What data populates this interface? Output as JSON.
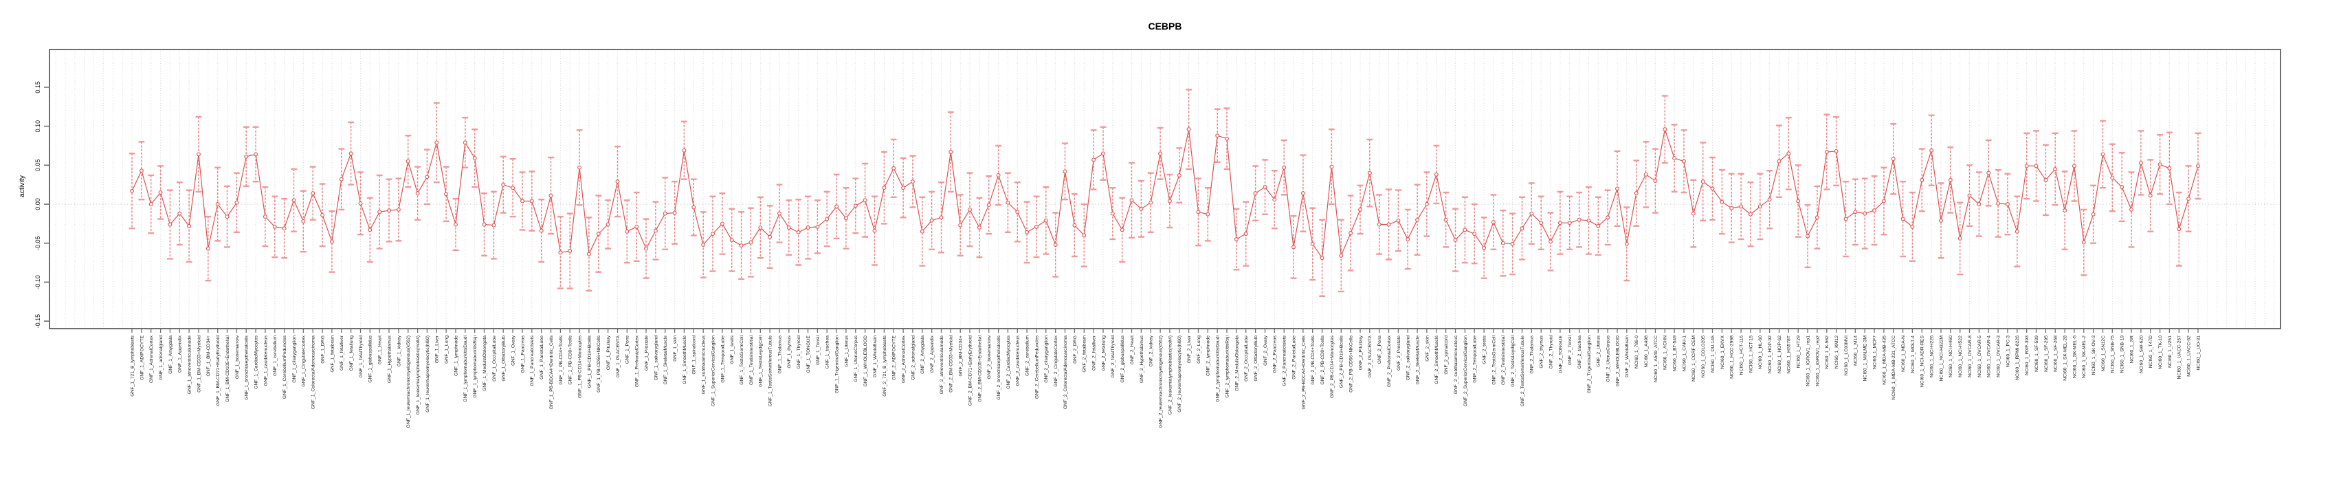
{
  "title": "CEBPB",
  "chart_data": {
    "type": "scatter",
    "subtype": "errorbar-series",
    "title": "CEBPB",
    "xlabel": "",
    "ylabel": "activity",
    "ylim": [
      -0.158,
      0.198
    ],
    "yticks": [
      0.15,
      0.1,
      0.05,
      0.0,
      -0.05,
      -0.1,
      -0.15
    ],
    "ytick_labels": [
      "0.15",
      "0.10",
      "0.05",
      "0.00",
      "-0.05",
      "-0.10",
      "-0.15"
    ],
    "grid": "vertical dotted gridline per category, dotted horizontal line at zero",
    "legend": "none",
    "marker": "open-circle",
    "colors": {
      "whisker": "#ef9a9a",
      "whisker_line": "#e96a6a",
      "series_line": "#de5252",
      "marker_stroke": "#de5252",
      "gridline": "#d4d4d4",
      "zero_line": "#c9c9c9",
      "axis_border": "#6e6e6e",
      "tick": "#6e6e6e",
      "label_text": "#1a1a1a"
    },
    "categories": [
      "GNF_1_721_B_lymphoblasts",
      "GNF_1_ADIPOCYTE",
      "GNF_1_AdrenalCortex",
      "GNF_1_adrenalgland",
      "GNF_1_Amygdala",
      "GNF_1_Appendix",
      "GNF_1_atrioventricularnode",
      "GNF_1_BM-CD33+Myeloid",
      "GNF_1_BM-CD34+",
      "GNF_1_BM-CD71+EarlyErythroid",
      "GNF_1_BM-CD105+Endothelial",
      "GNF_1_bonemarrow",
      "GNF_1_bronchialepithelialcells",
      "GNF_1_CardiacMyocytes",
      "GNF_1_caudatenucleus",
      "GNF_1_cerebellum",
      "GNF_1_CerebellumPeduncles",
      "GNF_1_ciliaryganglion",
      "GNF_1_CingulateCortex",
      "GNF_1_ColorectalAdenocarcinoma",
      "GNF_1_DRG",
      "GNF_1_fetalbrain",
      "GNF_1_fetalliver",
      "GNF_1_fetallung",
      "GNF_1_fetalThyroid",
      "GNF_1_globuspallidus",
      "GNF_1_Heart",
      "GNF_1_Hypothalamus",
      "GNF_1_kidney",
      "GNF_1_leukemiachronicmyelogenous(k562)",
      "GNF_1_leukemialymphoblastic(molt4)",
      "GNF_1_leukemiapromyelocytic(hl60)",
      "GNF_1_Liver",
      "GNF_1_Lung",
      "GNF_1_lymphnode",
      "GNF_1_lymphomaburkittsDaudi",
      "GNF_1_lymphomaburkittsRaji",
      "GNF_1_MedullaOblongata",
      "GNF_1_OccipitalLobe",
      "GNF_1_OlfactoryBulb",
      "GNF_1_Ovary",
      "GNF_1_Pancreas",
      "GNF_1_PancreaticIslets",
      "GNF_1_ParietalLobe",
      "GNF_1_PB-BDCA4+Dentritic_Cells",
      "GNF_1_PB-CD4+Tcells",
      "GNF_1_PB-CD8+Tcells",
      "GNF_1_PB-CD14+Monocytes",
      "GNF_1_PB-CD19+Bcells",
      "GNF_1_PB-CD56+NKCells",
      "GNF_1_Pituitary",
      "GNF_1_PLACENTA",
      "GNF_1_Pons",
      "GNF_1_PrefrontalCortex",
      "GNF_1_Prostate",
      "GNF_1_salivarygland",
      "GNF_1_SkeletalMuscle",
      "GNF_1_skin",
      "GNF_1_SmoothMuscle",
      "GNF_1_spinalcord",
      "GNF_1_subthalamicnucleus",
      "GNF_1_SuperiorCervicalGanglion",
      "GNF_1_TemporalLobe",
      "GNF_1_testis",
      "GNF_1_TestisGermCell",
      "GNF_1_TestisInterstitial",
      "GNF_1_TestisLeydigCell",
      "GNF_1_TestisSeminiferousTubule",
      "GNF_1_Thalamus",
      "GNF_1_thymus",
      "GNF_1_Thyroid",
      "GNF_1_TONGUE",
      "GNF_1_Tonsil",
      "GNF_1_trachea",
      "GNF_1_TrigeminalGanglion",
      "GNF_1_Uterus",
      "GNF_1_UterusCorpus",
      "GNF_1_WHOLEBLOOD",
      "GNF_1_WholeBrain",
      "GNF_2_721_B_lymphoblasts",
      "GNF_2_ADIPOCYTE",
      "GNF_2_AdrenalCortex",
      "GNF_2_adrenalgland",
      "GNF_2_Amygdala",
      "GNF_2_Appendix",
      "GNF_2_atrioventricularnode",
      "GNF_2_BM-CD33+Myeloid",
      "GNF_2_BM-CD34+",
      "GNF_2_BM-CD71+EarlyErythroid",
      "GNF_2_BM-CD105+Endothelial",
      "GNF_2_bonemarrow",
      "GNF_2_bronchialepithelialcells",
      "GNF_2_CardiacMyocytes",
      "GNF_2_caudatenucleus",
      "GNF_2_cerebellum",
      "GNF_2_CerebellumPeduncles",
      "GNF_2_ciliaryganglion",
      "GNF_2_CingulateCortex",
      "GNF_2_ColorectalAdenocarcinoma",
      "GNF_2_DRG",
      "GNF_2_fetalbrain",
      "GNF_2_fetalliver",
      "GNF_2_fetallung",
      "GNF_2_fetalThyroid",
      "GNF_2_globuspallidus",
      "GNF_2_Heart",
      "GNF_2_Hypothalamus",
      "GNF_2_kidney",
      "GNF_2_leukemiachronicmyelogenous(k562)",
      "GNF_2_leukemialymphoblastic(molt4)",
      "GNF_2_leukemiapromyelocytic(hl60)",
      "GNF_2_Liver",
      "GNF_2_Lung",
      "GNF_2_lymphnode",
      "GNF_2_lymphomaburkittsDaudi",
      "GNF_2_lymphomaburkittsRaji",
      "GNF_2_MedullaOblongata",
      "GNF_2_OccipitalLobe",
      "GNF_2_OlfactoryBulb",
      "GNF_2_Ovary",
      "GNF_2_Pancreas",
      "GNF_2_PancreaticIslets",
      "GNF_2_ParietalLobe",
      "GNF_2_PB-BDCA4+Dentritic_Cells",
      "GNF_2_PB-CD4+Tcells",
      "GNF_2_PB-CD8+Tcells",
      "GNF_2_PB-CD14+Monocytes",
      "GNF_2_PB-CD19+Bcells",
      "GNF_2_PB-CD56+NKCells",
      "GNF_2_Pituitary",
      "GNF_2_PLACENTA",
      "GNF_2_Pons",
      "GNF_2_PrefrontalCortex",
      "GNF_2_Prostate",
      "GNF_2_salivarygland",
      "GNF_2_SkeletalMuscle",
      "GNF_2_skin",
      "GNF_2_SmoothMuscle",
      "GNF_2_spinalcord",
      "GNF_2_subthalamicnucleus",
      "GNF_2_SuperiorCervicalGanglion",
      "GNF_2_TemporalLobe",
      "GNF_2_testis",
      "GNF_2_TestisGermCell",
      "GNF_2_TestisInterstitial",
      "GNF_2_TestisLeydigCell",
      "GNF_2_TestisSeminiferousTubule",
      "GNF_2_Thalamus",
      "GNF_2_thymus",
      "GNF_2_Thyroid",
      "GNF_2_TONGUE",
      "GNF_2_Tonsil",
      "GNF_2_trachea",
      "GNF_2_TrigeminalGanglion",
      "GNF_2_Uterus",
      "GNF_2_UterusCorpus",
      "GNF_2_WHOLEBLOOD",
      "GNF_2_WholeBrain",
      "NCI60_1_786-0",
      "NCI60_1_A498",
      "NCI60_1_A549_ATCC",
      "NCI60_1_ACHN",
      "NCI60_1_BT-549",
      "NCI60_1_CAKI-1",
      "NCI60_1_CCRF-CEM",
      "NCI60_1_COLO205",
      "NCI60_1_DU-145",
      "NCI60_1_EKVX",
      "NCI60_1_HCC-2998",
      "NCI60_1_HCT-116",
      "NCI60_1_HCT-15",
      "NCI60_1_HL-60",
      "NCI60_1_HOP-92",
      "NCI60_1_HOP-62",
      "NCI60_1_HS578T",
      "NCI60_1_HT29",
      "NCI60_1_IGROV1_rep1",
      "NCI60_1_IGROV1_rep2",
      "NCI60_1_K-562",
      "NCI60_1_KM12",
      "NCI60_1_LOXIMVI",
      "NCI60_1_M14",
      "NCI60_1_MALME-3M",
      "NCI60_1_MCF7",
      "NCI60_1_MDA-MB-435",
      "NCI60_1_MDA-MB-231_ATCC",
      "NCI60_1_MDA-N",
      "NCI60_1_MOLT-4",
      "NCI60_1_NCI-ADR-RES",
      "NCI60_1_NCI-H226",
      "NCI60_1_NCI-H322M",
      "NCI60_1_NCI-H460",
      "NCI60_1_NCI-H522",
      "NCI60_1_OVCAR-8",
      "NCI60_1_OVCAR-5",
      "NCI60_1_OVCAR-4",
      "NCI60_1_OVCAR-3",
      "NCI60_1_PC-3",
      "NCI60_1_RPMI-8226",
      "NCI60_1_RXF-393",
      "NCI60_1_SF-539",
      "NCI60_1_SF-295",
      "NCI60_1_SF-268",
      "NCI60_1_SK-MEL-28",
      "NCI60_1_SK-MEL-5",
      "NCI60_1_SK-MEL-2",
      "NCI60_1_SK-OV-3",
      "NCI60_1_SN12C",
      "NCI60_1_SNB-75",
      "NCI60_1_SNB-19",
      "NCI60_1_SR",
      "NCI60_1_SW-620",
      "NCI60_1_T47D",
      "NCI60_1_TK-10",
      "NCI60_1_U251",
      "NCI60_1_UACC-257",
      "NCI60_1_UACC-62",
      "NCI60_1_UO-31"
    ],
    "values": [
      0.017,
      0.043,
      0.0,
      0.015,
      -0.026,
      -0.012,
      -0.028,
      0.064,
      -0.057,
      0.0,
      -0.016,
      0.002,
      0.061,
      0.064,
      -0.016,
      -0.029,
      -0.031,
      0.005,
      -0.022,
      0.014,
      -0.014,
      -0.048,
      0.032,
      0.065,
      0.001,
      -0.033,
      -0.01,
      -0.008,
      -0.007,
      0.055,
      0.014,
      0.035,
      0.079,
      0.013,
      -0.026,
      0.079,
      0.059,
      -0.026,
      -0.027,
      0.025,
      0.021,
      0.004,
      0.004,
      -0.034,
      0.011,
      -0.062,
      -0.06,
      0.047,
      -0.064,
      -0.038,
      -0.026,
      0.029,
      -0.035,
      -0.029,
      -0.057,
      -0.034,
      -0.012,
      -0.011,
      0.069,
      -0.004,
      -0.052,
      -0.038,
      -0.025,
      -0.046,
      -0.053,
      -0.049,
      -0.03,
      -0.042,
      -0.012,
      -0.03,
      -0.036,
      -0.03,
      -0.029,
      -0.019,
      -0.003,
      -0.018,
      -0.002,
      0.005,
      -0.034,
      0.021,
      0.046,
      0.021,
      0.029,
      -0.035,
      -0.021,
      -0.017,
      0.067,
      -0.027,
      -0.007,
      -0.03,
      -0.001,
      0.037,
      0.002,
      -0.01,
      -0.036,
      -0.029,
      -0.021,
      -0.052,
      0.042,
      -0.027,
      -0.04,
      0.057,
      0.065,
      -0.012,
      -0.033,
      0.005,
      -0.006,
      0.002,
      0.065,
      0.004,
      0.037,
      0.096,
      -0.01,
      -0.013,
      0.088,
      0.084,
      -0.045,
      -0.038,
      0.014,
      0.022,
      0.006,
      0.047,
      -0.055,
      0.014,
      -0.051,
      -0.069,
      0.048,
      -0.066,
      -0.037,
      -0.007,
      0.04,
      -0.026,
      -0.026,
      -0.021,
      -0.045,
      -0.02,
      0.0,
      0.038,
      -0.02,
      -0.046,
      -0.033,
      -0.038,
      -0.056,
      -0.023,
      -0.05,
      -0.051,
      -0.031,
      -0.012,
      -0.024,
      -0.048,
      -0.024,
      -0.024,
      -0.02,
      -0.021,
      -0.028,
      -0.017,
      0.02,
      -0.051,
      0.014,
      0.038,
      0.03,
      0.096,
      0.059,
      0.055,
      -0.012,
      0.029,
      0.02,
      0.003,
      -0.005,
      -0.003,
      -0.013,
      -0.003,
      0.006,
      0.055,
      0.065,
      0.004,
      -0.041,
      -0.017,
      0.067,
      0.068,
      -0.019,
      -0.01,
      -0.012,
      -0.008,
      0.004,
      0.058,
      -0.019,
      -0.029,
      0.031,
      0.069,
      -0.021,
      0.031,
      -0.044,
      0.011,
      0.0,
      0.04,
      0.001,
      0.0,
      -0.035,
      0.049,
      0.049,
      0.031,
      0.045,
      -0.008,
      0.049,
      -0.049,
      -0.013,
      0.064,
      0.034,
      0.022,
      -0.007,
      0.053,
      0.011,
      0.051,
      0.046,
      -0.032,
      0.007,
      0.049
    ],
    "errors": [
      0.048,
      0.037,
      0.037,
      0.034,
      0.044,
      0.04,
      0.046,
      0.048,
      0.041,
      0.047,
      0.039,
      0.038,
      0.038,
      0.035,
      0.038,
      0.039,
      0.038,
      0.04,
      0.039,
      0.034,
      0.04,
      0.039,
      0.039,
      0.04,
      0.04,
      0.041,
      0.047,
      0.04,
      0.04,
      0.033,
      0.034,
      0.035,
      0.051,
      0.035,
      0.033,
      0.032,
      0.037,
      0.04,
      0.043,
      0.036,
      0.037,
      0.037,
      0.038,
      0.04,
      0.049,
      0.046,
      0.048,
      0.048,
      0.047,
      0.049,
      0.031,
      0.045,
      0.04,
      0.044,
      0.038,
      0.037,
      0.046,
      0.04,
      0.037,
      0.036,
      0.042,
      0.048,
      0.039,
      0.04,
      0.043,
      0.044,
      0.039,
      0.04,
      0.037,
      0.035,
      0.042,
      0.04,
      0.034,
      0.035,
      0.041,
      0.039,
      0.035,
      0.047,
      0.044,
      0.046,
      0.037,
      0.038,
      0.033,
      0.044,
      0.037,
      0.045,
      0.051,
      0.039,
      0.047,
      0.038,
      0.037,
      0.038,
      0.038,
      0.038,
      0.039,
      0.039,
      0.043,
      0.041,
      0.036,
      0.04,
      0.04,
      0.038,
      0.034,
      0.033,
      0.041,
      0.048,
      0.036,
      0.038,
      0.033,
      0.034,
      0.035,
      0.051,
      0.043,
      0.034,
      0.034,
      0.039,
      0.039,
      0.041,
      0.035,
      0.035,
      0.037,
      0.035,
      0.04,
      0.049,
      0.046,
      0.049,
      0.048,
      0.046,
      0.048,
      0.031,
      0.043,
      0.038,
      0.045,
      0.039,
      0.038,
      0.045,
      0.041,
      0.037,
      0.035,
      0.04,
      0.042,
      0.038,
      0.039,
      0.035,
      0.042,
      0.039,
      0.04,
      0.039,
      0.034,
      0.037,
      0.04,
      0.034,
      0.035,
      0.043,
      0.037,
      0.035,
      0.048,
      0.047,
      0.042,
      0.042,
      0.041,
      0.043,
      0.043,
      0.04,
      0.043,
      0.05,
      0.04,
      0.041,
      0.044,
      0.042,
      0.041,
      0.042,
      0.037,
      0.046,
      0.046,
      0.046,
      0.04,
      0.04,
      0.048,
      0.044,
      0.048,
      0.042,
      0.045,
      0.044,
      0.043,
      0.045,
      0.048,
      0.044,
      0.04,
      0.045,
      0.048,
      0.042,
      0.046,
      0.039,
      0.041,
      0.042,
      0.043,
      0.039,
      0.045,
      0.042,
      0.045,
      0.045,
      0.046,
      0.05,
      0.045,
      0.042,
      0.037,
      0.043,
      0.043,
      0.044,
      0.048,
      0.041,
      0.046,
      0.038,
      0.046,
      0.047,
      0.042,
      0.042
    ]
  }
}
